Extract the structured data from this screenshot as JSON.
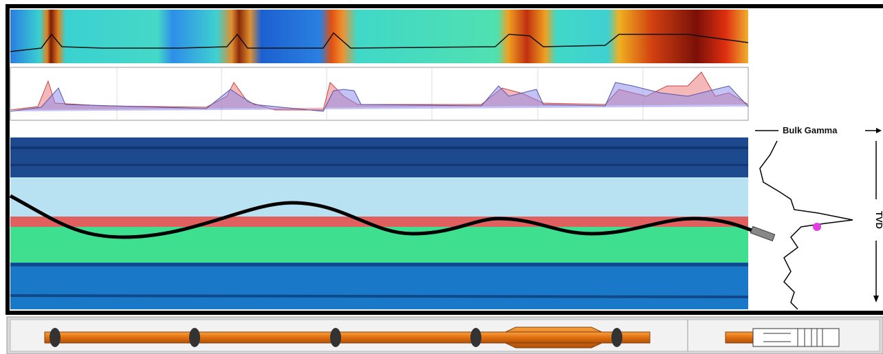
{
  "labels": {
    "bulk_gamma": "Bulk Gamma",
    "tvd": "TVD"
  }
}
